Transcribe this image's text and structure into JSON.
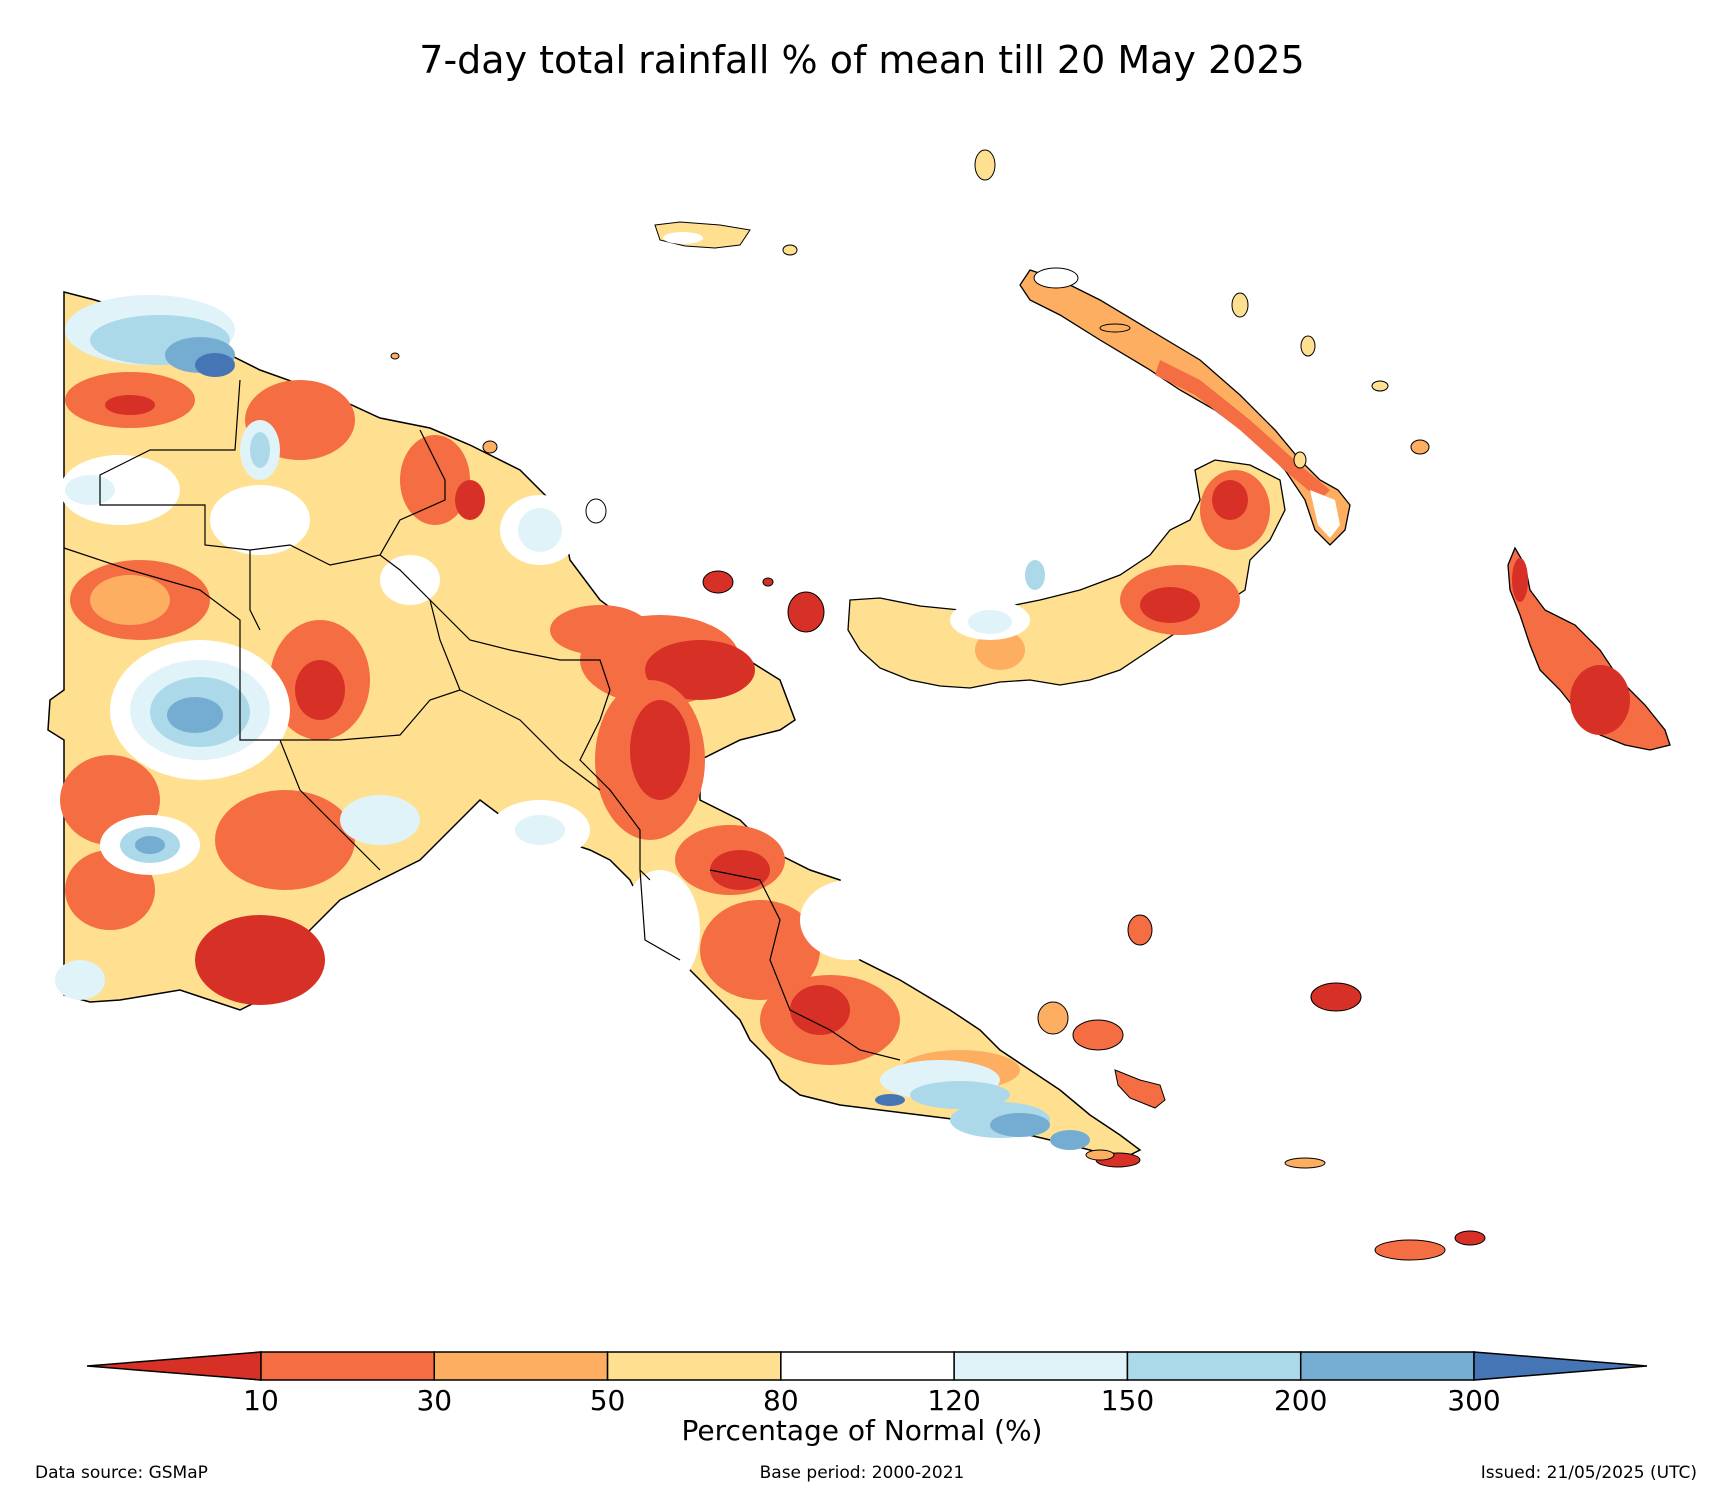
{
  "title": "7-day total rainfall % of mean till 20 May 2025",
  "colorbar": {
    "label": "Percentage of Normal (%)",
    "ticks": [
      "10",
      "30",
      "50",
      "80",
      "120",
      "150",
      "200",
      "300"
    ],
    "colors": [
      "#d73027",
      "#f46d43",
      "#fdae61",
      "#fee090",
      "#ffffff",
      "#e0f3f8",
      "#abd9e9",
      "#74add1",
      "#4575b4"
    ]
  },
  "footer": {
    "source": "Data source: GSMaP",
    "base_period": "Base period: 2000-2021",
    "issued": "Issued: 21/05/2025 (UTC)"
  }
}
